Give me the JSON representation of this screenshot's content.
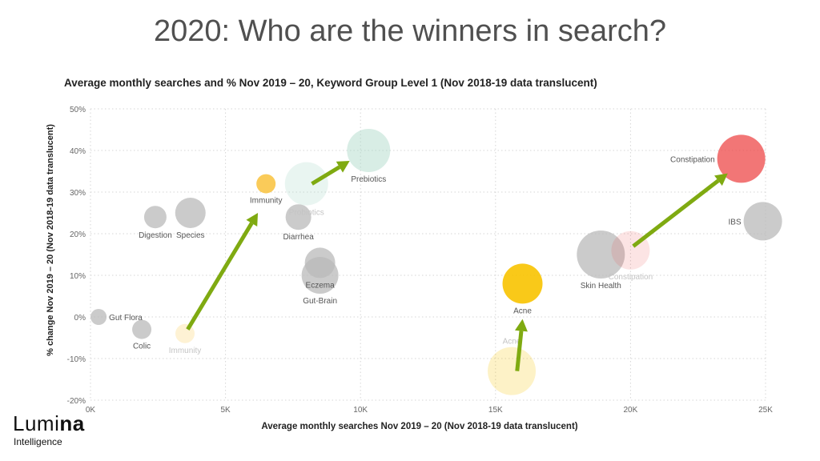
{
  "slide": {
    "title": "2020: Who are the winners in search?"
  },
  "logo": {
    "name_light": "Lumi",
    "name_bold": "na",
    "subtitle": "Intelligence"
  },
  "chart_data": {
    "type": "scatter",
    "title": "Average monthly searches and % Nov 2019 – 20, Keyword Group Level 1 (Nov 2018-19 data translucent)",
    "xlabel": "Average monthly searches Nov 2019 – 20  (Nov 2018-19 data translucent)",
    "ylabel": "% change Nov 2019 – 20  (Nov 2018-19 data translucent)",
    "xlim": [
      0,
      25000
    ],
    "ylim": [
      -20,
      50
    ],
    "x_ticks": [
      0,
      5000,
      10000,
      15000,
      20000,
      25000
    ],
    "x_tick_labels": [
      "0K",
      "5K",
      "10K",
      "15K",
      "20K",
      "25K"
    ],
    "y_ticks": [
      50,
      40,
      30,
      20,
      10,
      0,
      -10,
      -20
    ],
    "y_tick_labels": [
      "50%",
      "40%",
      "30%",
      "20%",
      "10%",
      "0%",
      "-10%",
      "-20%"
    ],
    "grid": true,
    "colors": {
      "neutral": "#b9b9b9",
      "immunity": "#f9c23c",
      "prebiotics": "#a9d6c6",
      "acne": "#f8c300",
      "constipation": "#ee4848",
      "arrow": "#7faa11"
    },
    "points": [
      {
        "label": "Gut Flora",
        "x": 300,
        "y": 0,
        "size": 10,
        "color": "neutral",
        "opacity": 0.75,
        "label_pos": "right"
      },
      {
        "label": "Colic",
        "x": 1900,
        "y": -3,
        "size": 12,
        "color": "neutral",
        "opacity": 0.75,
        "label_pos": "below"
      },
      {
        "label": "Digestion",
        "x": 2400,
        "y": 24,
        "size": 14,
        "color": "neutral",
        "opacity": 0.75,
        "label_pos": "below"
      },
      {
        "label": "Species",
        "x": 3700,
        "y": 25,
        "size": 19,
        "color": "neutral",
        "opacity": 0.75,
        "label_pos": "below"
      },
      {
        "label": "Immunity",
        "x": 3500,
        "y": -4,
        "size": 12,
        "color": "immunity",
        "opacity": 0.22,
        "label_pos": "below",
        "faded": true
      },
      {
        "label": "Immunity",
        "x": 6500,
        "y": 32,
        "size": 12,
        "color": "immunity",
        "opacity": 0.85,
        "label_pos": "below"
      },
      {
        "label": "Probiotics",
        "x": 8000,
        "y": 32,
        "size": 27,
        "color": "prebiotics",
        "opacity": 0.25,
        "label_pos": "below",
        "faded": true
      },
      {
        "label": "Prebiotics",
        "x": 10300,
        "y": 40,
        "size": 27,
        "color": "prebiotics",
        "opacity": 0.45,
        "label_pos": "below"
      },
      {
        "label": "Diarrhea",
        "x": 7700,
        "y": 24,
        "size": 16,
        "color": "neutral",
        "opacity": 0.75,
        "label_pos": "below"
      },
      {
        "label": "Eczema",
        "x": 8500,
        "y": 13,
        "size": 19,
        "color": "neutral",
        "opacity": 0.75,
        "label_pos": "below"
      },
      {
        "label": "Gut-Brain",
        "x": 8500,
        "y": 10,
        "size": 23,
        "color": "neutral",
        "opacity": 0.75,
        "label_pos": "below"
      },
      {
        "label": "Acne",
        "x": 15600,
        "y": -13,
        "size": 30,
        "color": "acne",
        "opacity": 0.22,
        "label_pos": "above",
        "faded": true
      },
      {
        "label": "Acne",
        "x": 16000,
        "y": 8,
        "size": 25,
        "color": "acne",
        "opacity": 0.9,
        "label_pos": "below"
      },
      {
        "label": "Skin Health",
        "x": 18900,
        "y": 15,
        "size": 30,
        "color": "neutral",
        "opacity": 0.75,
        "label_pos": "below"
      },
      {
        "label": "Constipation",
        "x": 20000,
        "y": 16,
        "size": 24,
        "color": "constipation",
        "opacity": 0.15,
        "label_pos": "below",
        "faded": true
      },
      {
        "label": "Constipation",
        "x": 24100,
        "y": 38,
        "size": 30,
        "color": "constipation",
        "opacity": 0.75,
        "label_pos": "left"
      },
      {
        "label": "IBS",
        "x": 24900,
        "y": 23,
        "size": 24,
        "color": "neutral",
        "opacity": 0.75,
        "label_pos": "left"
      }
    ],
    "arrows": [
      {
        "from": [
          3600,
          -3
        ],
        "to": [
          6200,
          25
        ]
      },
      {
        "from": [
          8200,
          32
        ],
        "to": [
          9600,
          37.5
        ]
      },
      {
        "from": [
          15800,
          -13
        ],
        "to": [
          16000,
          -0.5
        ]
      },
      {
        "from": [
          20100,
          17
        ],
        "to": [
          23600,
          34.5
        ]
      }
    ]
  }
}
